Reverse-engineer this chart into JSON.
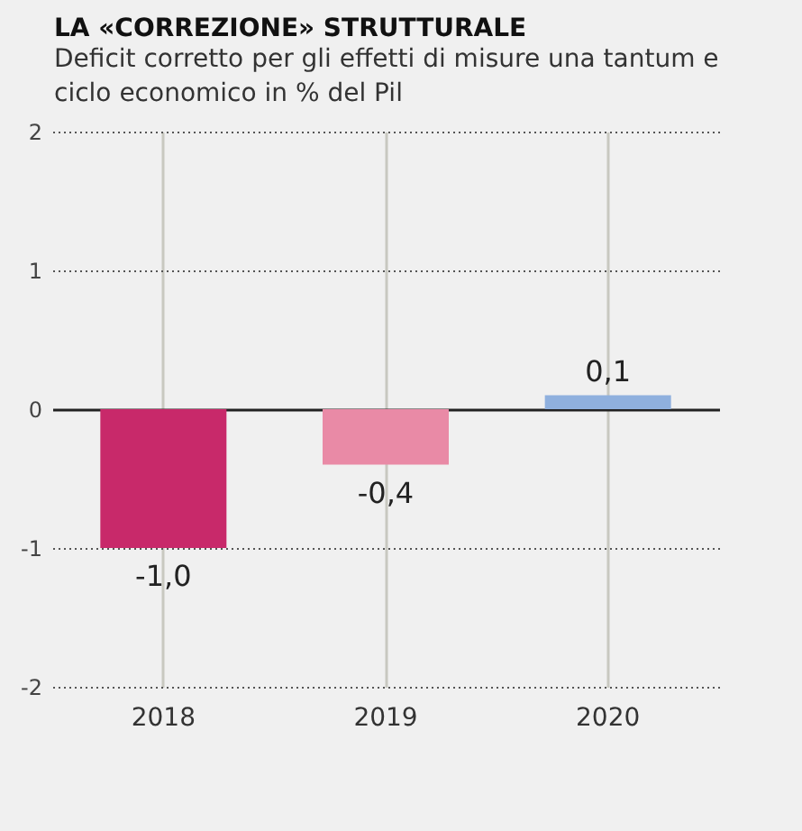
{
  "chart_data": {
    "type": "bar",
    "title": "LA «CORREZIONE» STRUTTURALE",
    "subtitle": "Deficit corretto per gli effetti di misure una tantum e ciclo economico in % del Pil",
    "categories": [
      "2018",
      "2019",
      "2020"
    ],
    "values": [
      -1.0,
      -0.4,
      0.1
    ],
    "colors": [
      "#c8296a",
      "#e98aa6",
      "#8fb0de"
    ],
    "value_labels": [
      "-1,0",
      "-0,4",
      "0,1"
    ],
    "ylim": [
      -2,
      2
    ],
    "yticks": [
      -2,
      -1,
      0,
      1,
      2
    ],
    "grid": true
  }
}
